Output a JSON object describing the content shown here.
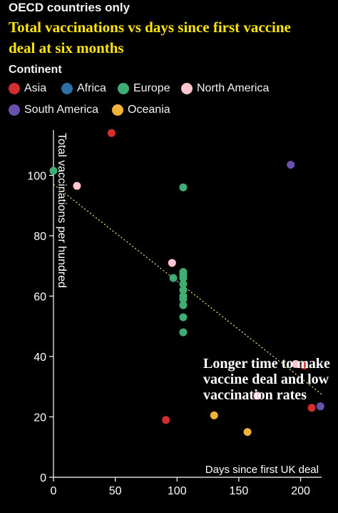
{
  "header": {
    "kicker": "OECD countries only",
    "title_line1": "Total vaccinations vs days since first vaccine",
    "title_line2": "deal at six months"
  },
  "legend": {
    "title": "Continent",
    "items": [
      {
        "label": "Asia",
        "color": "#d32f2f"
      },
      {
        "label": "Africa",
        "color": "#2d6fa8"
      },
      {
        "label": "Europe",
        "color": "#3fae74"
      },
      {
        "label": "North America",
        "color": "#ffc5cf"
      },
      {
        "label": "South America",
        "color": "#6b4faf"
      },
      {
        "label": "Oceania",
        "color": "#f2b338"
      }
    ]
  },
  "chart_data": {
    "type": "scatter",
    "title": "Total vaccinations vs days since first vaccine deal at six months",
    "xlabel": "Days since first UK deal",
    "ylabel": "Total vaccinations per hundred",
    "xlim": [
      0,
      217
    ],
    "ylim": [
      0,
      115
    ],
    "xticks": [
      0,
      50,
      100,
      150,
      200
    ],
    "yticks": [
      0,
      20,
      40,
      60,
      80,
      100
    ],
    "trendline": {
      "x": [
        0,
        217
      ],
      "y": [
        97,
        27.5
      ],
      "color": "#e8e06a",
      "style": "dotted"
    },
    "annotation": {
      "lines": [
        "Longer time to make",
        "vaccine deal and low",
        "vaccination rates"
      ],
      "anchor": {
        "x": 203,
        "y": 37
      }
    },
    "series": [
      {
        "name": "Asia",
        "color": "#d32f2f",
        "points": [
          [
            47,
            114
          ],
          [
            91,
            19
          ],
          [
            203,
            37
          ],
          [
            209,
            23
          ]
        ]
      },
      {
        "name": "Africa",
        "color": "#2d6fa8",
        "points": []
      },
      {
        "name": "Europe",
        "color": "#3fae74",
        "points": [
          [
            0,
            101.5
          ],
          [
            105,
            96
          ],
          [
            105,
            68
          ],
          [
            105,
            67
          ],
          [
            105,
            66
          ],
          [
            105,
            64
          ],
          [
            105,
            62
          ],
          [
            105,
            60
          ],
          [
            105,
            59
          ],
          [
            105,
            57
          ],
          [
            97,
            66
          ],
          [
            105,
            53
          ],
          [
            105,
            48
          ]
        ]
      },
      {
        "name": "North America",
        "color": "#ffc5cf",
        "points": [
          [
            19,
            96.5
          ],
          [
            96,
            71
          ],
          [
            165,
            27
          ],
          [
            196,
            37.5
          ]
        ]
      },
      {
        "name": "South America",
        "color": "#6b4faf",
        "points": [
          [
            192,
            103.5
          ],
          [
            216,
            23.5
          ]
        ]
      },
      {
        "name": "Oceania",
        "color": "#f2b338",
        "points": [
          [
            130,
            20.5
          ],
          [
            157,
            15
          ]
        ]
      }
    ]
  }
}
